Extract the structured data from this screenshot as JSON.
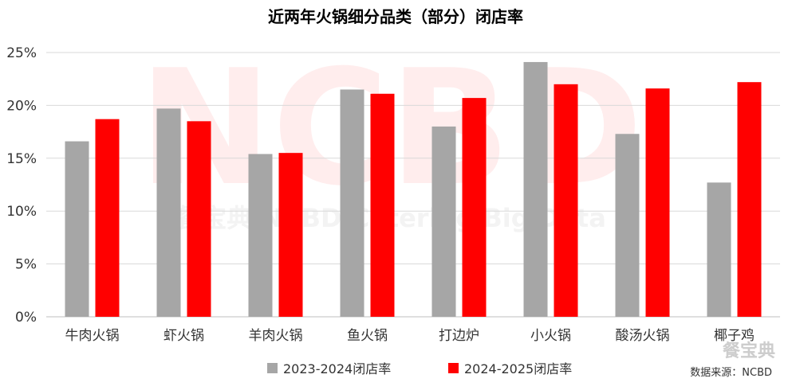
{
  "chart_data": {
    "type": "bar",
    "title": "近两年火锅细分品类（部分）闭店率",
    "xlabel": "",
    "ylabel": "",
    "categories": [
      "牛肉火锅",
      "虾火锅",
      "羊肉火锅",
      "鱼火锅",
      "打边炉",
      "小火锅",
      "酸汤火锅",
      "椰子鸡"
    ],
    "series": [
      {
        "name": "2023-2024闭店率",
        "color": "#a6a6a6",
        "values": [
          16.6,
          19.7,
          15.4,
          21.5,
          18.0,
          24.1,
          17.3,
          12.7
        ]
      },
      {
        "name": "2024-2025闭店率",
        "color": "#ff0000",
        "values": [
          18.7,
          18.5,
          15.5,
          21.1,
          20.7,
          22.0,
          21.6,
          22.2
        ]
      }
    ],
    "ylim": [
      0,
      25
    ],
    "yticks": [
      0,
      5,
      10,
      15,
      20,
      25
    ],
    "ytick_labels": [
      "0%",
      "5%",
      "10%",
      "15%",
      "20%",
      "25%"
    ],
    "grid": true,
    "legend_position": "bottom"
  },
  "source_note": "数据来源：NCBD",
  "watermark": {
    "main": "NCBD",
    "sub": "餐宝典 NCBD Catering Big Data",
    "logo": "餐宝典"
  }
}
